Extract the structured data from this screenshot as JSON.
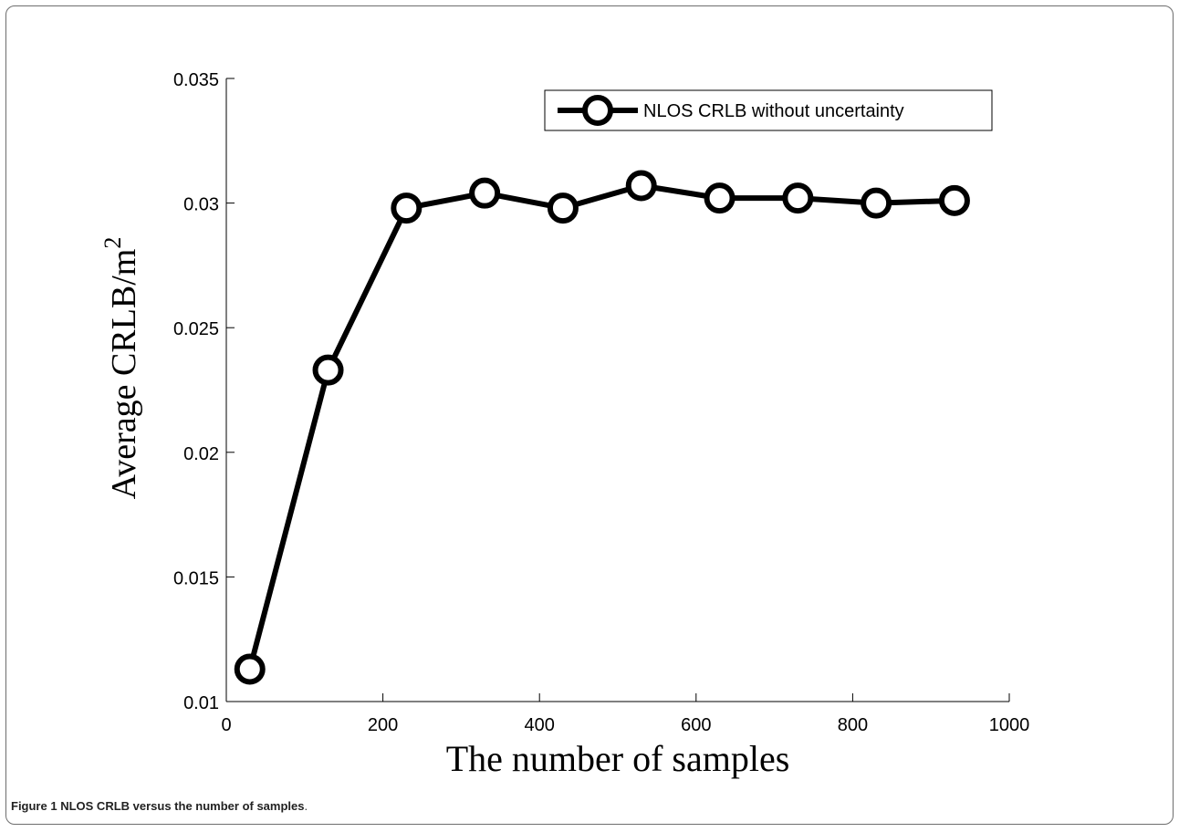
{
  "caption": {
    "label": "Figure 1",
    "text": "NLOS CRLB versus the number of samples",
    "end": "."
  },
  "chart_data": {
    "type": "line",
    "title": "",
    "xlabel": "The number of samples",
    "ylabel": "Average CRLB/m",
    "ylabel_superscript": "2",
    "xlim": [
      0,
      1000
    ],
    "ylim": [
      0.01,
      0.035
    ],
    "xticks": [
      0,
      200,
      400,
      600,
      800,
      1000
    ],
    "yticks": [
      0.01,
      0.015,
      0.02,
      0.025,
      0.03,
      0.035
    ],
    "xtick_labels": [
      "0",
      "200",
      "400",
      "600",
      "800",
      "1000"
    ],
    "ytick_labels": [
      "0.01",
      "0.015",
      "0.02",
      "0.025",
      "0.03",
      "0.035"
    ],
    "legend_position": "top-right",
    "grid": false,
    "series": [
      {
        "name": "NLOS CRLB without uncertainty",
        "color": "#000000",
        "marker": "circle",
        "x": [
          30,
          130,
          230,
          330,
          430,
          530,
          630,
          730,
          830,
          930
        ],
        "y": [
          0.0113,
          0.0233,
          0.0298,
          0.0304,
          0.0298,
          0.0307,
          0.0302,
          0.0302,
          0.03,
          0.0301
        ]
      }
    ]
  }
}
